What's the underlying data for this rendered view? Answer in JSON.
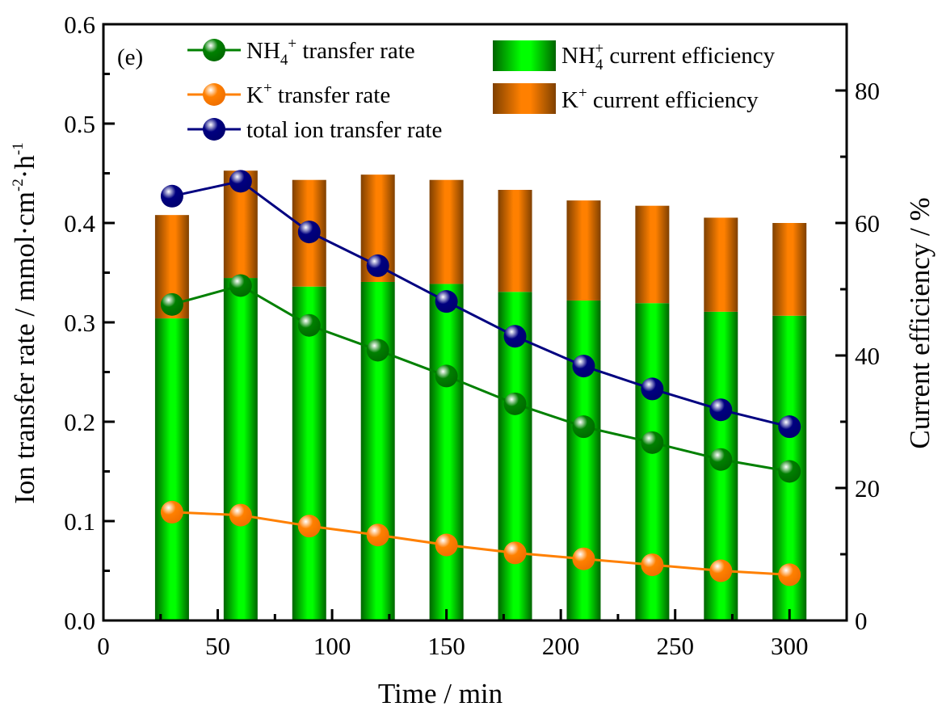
{
  "chart_data": {
    "type": "bar+line",
    "panel_label": "(e)",
    "xlabel": "Time / min",
    "ylabel_left": {
      "main": "Ion transfer rate / mmol·cm",
      "sup1": "-2",
      "mid": "·h",
      "sup2": "-1"
    },
    "ylabel_right": "Current efficiency / %",
    "xlim": [
      0,
      325
    ],
    "ylim_left": [
      0,
      0.6
    ],
    "ylim_right": [
      0,
      90
    ],
    "x_ticks": [
      "0",
      "50",
      "100",
      "150",
      "200",
      "250",
      "300"
    ],
    "y_left_ticks": [
      "0.0",
      "0.1",
      "0.2",
      "0.3",
      "0.4",
      "0.5",
      "0.6"
    ],
    "y_right_ticks": [
      "0",
      "20",
      "40",
      "60",
      "80"
    ],
    "x": [
      30,
      60,
      90,
      120,
      150,
      180,
      210,
      240,
      270,
      300
    ],
    "bar_series": [
      {
        "name": "NH4+ current efficiency",
        "label": {
          "base": "NH",
          "sub": "4",
          "sup": "+",
          "rest": " current efficiency"
        },
        "color": "#00ff00",
        "values": [
          45.6,
          51.7,
          50.4,
          51.1,
          50.8,
          49.6,
          48.3,
          47.9,
          46.6,
          46.0
        ]
      },
      {
        "name": "K+ current efficiency",
        "label": {
          "base": "K",
          "sup": "+",
          "rest": " current efficiency"
        },
        "color": "#ff8000",
        "values": [
          15.6,
          16.2,
          16.1,
          16.2,
          15.7,
          15.4,
          15.1,
          14.7,
          14.2,
          14.0
        ]
      }
    ],
    "line_series": [
      {
        "name": "NH4+ transfer rate",
        "label": {
          "base": "NH",
          "sub": "4",
          "sup": "+",
          "rest": " transfer rate"
        },
        "color": "#008000",
        "values": [
          0.318,
          0.337,
          0.297,
          0.272,
          0.246,
          0.218,
          0.195,
          0.179,
          0.162,
          0.15
        ]
      },
      {
        "name": "K+ transfer rate",
        "label": {
          "base": "K",
          "sup": "+",
          "rest": " transfer rate"
        },
        "color": "#ff8000",
        "values": [
          0.109,
          0.106,
          0.095,
          0.086,
          0.076,
          0.068,
          0.062,
          0.056,
          0.05,
          0.046
        ]
      },
      {
        "name": "total ion transfer rate",
        "label": {
          "base": "total ion transfer rate"
        },
        "color": "#000080",
        "values": [
          0.427,
          0.442,
          0.391,
          0.357,
          0.321,
          0.286,
          0.256,
          0.233,
          0.212,
          0.195
        ]
      }
    ],
    "legend_placement": "top-left"
  }
}
